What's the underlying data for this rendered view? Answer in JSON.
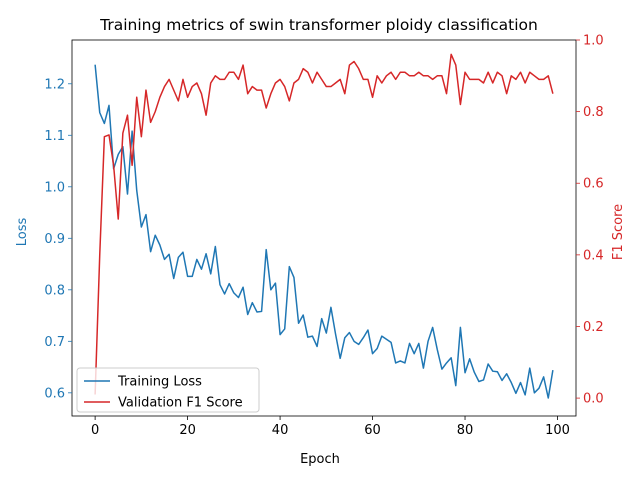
{
  "chart_data": {
    "type": "line",
    "title": "Training metrics of swin transformer ploidy classification",
    "xlabel": "Epoch",
    "ylabel_left": "Loss",
    "ylabel_right": "F1 Score",
    "xlim": [
      -5,
      104
    ],
    "ylim_left": [
      0.555,
      1.285
    ],
    "ylim_right": [
      -0.05,
      1.0
    ],
    "x_ticks": [
      0,
      20,
      40,
      60,
      80,
      100
    ],
    "y_ticks_left": [
      0.6,
      0.7,
      0.8,
      0.9,
      1.0,
      1.1,
      1.2
    ],
    "y_ticks_left_labels": [
      "0.6",
      "0.7",
      "0.8",
      "0.9",
      "1.0",
      "1.1",
      "1.2"
    ],
    "y_ticks_right": [
      0.0,
      0.2,
      0.4,
      0.6,
      0.8,
      1.0
    ],
    "y_ticks_right_labels": [
      "0.0",
      "0.2",
      "0.4",
      "0.6",
      "0.8",
      "1.0"
    ],
    "x_tick_labels": [
      "0",
      "20",
      "40",
      "60",
      "80",
      "100"
    ],
    "grid": false,
    "legend_position": "bottom-left",
    "colors": {
      "loss": "#1f77b4",
      "f1": "#d62728"
    },
    "x": [
      0,
      1,
      2,
      3,
      4,
      5,
      6,
      7,
      8,
      9,
      10,
      11,
      12,
      13,
      14,
      15,
      16,
      17,
      18,
      19,
      20,
      21,
      22,
      23,
      24,
      25,
      26,
      27,
      28,
      29,
      30,
      31,
      32,
      33,
      34,
      35,
      36,
      37,
      38,
      39,
      40,
      41,
      42,
      43,
      44,
      45,
      46,
      47,
      48,
      49,
      50,
      51,
      52,
      53,
      54,
      55,
      56,
      57,
      58,
      59,
      60,
      61,
      62,
      63,
      64,
      65,
      66,
      67,
      68,
      69,
      70,
      71,
      72,
      73,
      74,
      75,
      76,
      77,
      78,
      79,
      80,
      81,
      82,
      83,
      84,
      85,
      86,
      87,
      88,
      89,
      90,
      91,
      92,
      93,
      94,
      95,
      96,
      97,
      98,
      99
    ],
    "series": [
      {
        "name": "Training Loss",
        "axis": "left",
        "values": [
          1.237,
          1.144,
          1.123,
          1.158,
          1.035,
          1.063,
          1.078,
          0.986,
          1.108,
          0.993,
          0.922,
          0.946,
          0.874,
          0.906,
          0.887,
          0.859,
          0.869,
          0.822,
          0.863,
          0.873,
          0.826,
          0.826,
          0.859,
          0.84,
          0.87,
          0.831,
          0.884,
          0.81,
          0.792,
          0.812,
          0.794,
          0.785,
          0.805,
          0.752,
          0.775,
          0.757,
          0.758,
          0.878,
          0.8,
          0.813,
          0.713,
          0.724,
          0.845,
          0.824,
          0.735,
          0.751,
          0.708,
          0.71,
          0.69,
          0.744,
          0.716,
          0.766,
          0.714,
          0.667,
          0.707,
          0.717,
          0.7,
          0.694,
          0.707,
          0.722,
          0.676,
          0.686,
          0.71,
          0.704,
          0.698,
          0.658,
          0.662,
          0.658,
          0.696,
          0.676,
          0.696,
          0.648,
          0.7,
          0.727,
          0.684,
          0.646,
          0.658,
          0.668,
          0.614,
          0.727,
          0.639,
          0.666,
          0.64,
          0.622,
          0.625,
          0.656,
          0.642,
          0.641,
          0.624,
          0.637,
          0.62,
          0.599,
          0.62,
          0.596,
          0.648,
          0.6,
          0.609,
          0.631,
          0.59,
          0.644
        ]
      },
      {
        "name": "Validation F1 Score",
        "axis": "right",
        "values": [
          0.01,
          0.4,
          0.73,
          0.735,
          0.65,
          0.5,
          0.74,
          0.79,
          0.65,
          0.84,
          0.73,
          0.86,
          0.77,
          0.8,
          0.84,
          0.87,
          0.89,
          0.86,
          0.83,
          0.89,
          0.84,
          0.87,
          0.88,
          0.85,
          0.79,
          0.88,
          0.9,
          0.89,
          0.89,
          0.91,
          0.91,
          0.89,
          0.93,
          0.85,
          0.87,
          0.86,
          0.86,
          0.81,
          0.85,
          0.88,
          0.89,
          0.87,
          0.83,
          0.88,
          0.89,
          0.92,
          0.91,
          0.88,
          0.91,
          0.89,
          0.87,
          0.87,
          0.88,
          0.89,
          0.85,
          0.93,
          0.94,
          0.92,
          0.89,
          0.89,
          0.84,
          0.9,
          0.88,
          0.9,
          0.91,
          0.89,
          0.91,
          0.91,
          0.9,
          0.9,
          0.91,
          0.9,
          0.9,
          0.89,
          0.9,
          0.9,
          0.85,
          0.96,
          0.93,
          0.82,
          0.91,
          0.89,
          0.89,
          0.89,
          0.88,
          0.91,
          0.88,
          0.91,
          0.9,
          0.85,
          0.9,
          0.89,
          0.91,
          0.88,
          0.91,
          0.9,
          0.89,
          0.89,
          0.9,
          0.85
        ]
      }
    ]
  }
}
